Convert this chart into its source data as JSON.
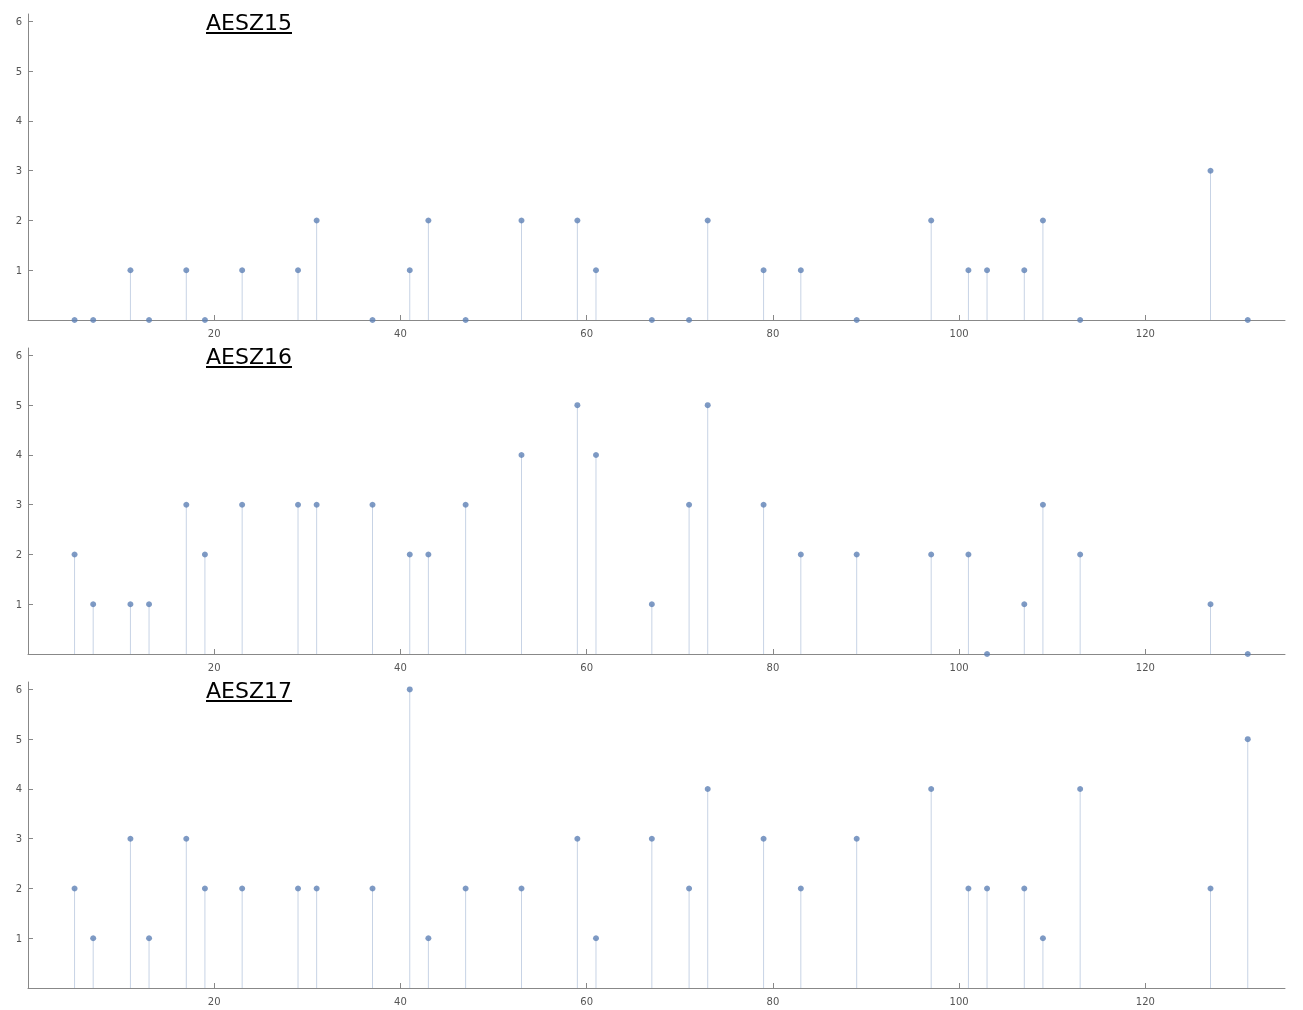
{
  "chart_data": [
    {
      "type": "lollipop",
      "title": "AESZ15",
      "x": [
        5,
        7,
        11,
        13,
        17,
        19,
        23,
        29,
        31,
        37,
        41,
        43,
        47,
        53,
        59,
        61,
        67,
        71,
        73,
        79,
        83,
        89,
        97,
        101,
        103,
        107,
        109,
        113,
        127,
        131
      ],
      "values": [
        0,
        0,
        1,
        0,
        1,
        0,
        1,
        1,
        2,
        0,
        1,
        2,
        0,
        2,
        2,
        1,
        0,
        0,
        2,
        1,
        1,
        0,
        2,
        1,
        1,
        1,
        2,
        0,
        3,
        0
      ],
      "color": "#5e81b5",
      "marker": "circle",
      "xlim": [
        0,
        135
      ],
      "xticks": [
        20,
        40,
        60,
        80,
        100,
        120
      ],
      "ylim": [
        0,
        6.15
      ],
      "yticks": [
        1,
        2,
        3,
        4,
        5,
        6
      ]
    },
    {
      "type": "lollipop",
      "title": "AESZ16",
      "x": [
        5,
        7,
        11,
        13,
        17,
        19,
        23,
        29,
        31,
        37,
        41,
        43,
        47,
        53,
        59,
        61,
        67,
        71,
        73,
        79,
        83,
        89,
        97,
        101,
        103,
        107,
        109,
        113,
        127,
        131
      ],
      "values": [
        2,
        1,
        1,
        1,
        3,
        2,
        3,
        3,
        3,
        3,
        2,
        2,
        3,
        4,
        5,
        4,
        1,
        3,
        5,
        3,
        2,
        2,
        2,
        2,
        0,
        1,
        3,
        2,
        1,
        0
      ],
      "color": "#5e81b5",
      "marker": "circle",
      "xlim": [
        0,
        135
      ],
      "xticks": [
        20,
        40,
        60,
        80,
        100,
        120
      ],
      "ylim": [
        0,
        6.15
      ],
      "yticks": [
        1,
        2,
        3,
        4,
        5,
        6
      ]
    },
    {
      "type": "lollipop",
      "title": "AESZ17",
      "x": [
        5,
        7,
        11,
        13,
        17,
        19,
        23,
        29,
        31,
        37,
        41,
        43,
        47,
        53,
        59,
        61,
        67,
        71,
        73,
        79,
        83,
        89,
        97,
        101,
        103,
        107,
        109,
        113,
        127,
        131
      ],
      "values": [
        2,
        1,
        3,
        1,
        3,
        2,
        2,
        2,
        2,
        2,
        6,
        1,
        2,
        2,
        3,
        1,
        3,
        2,
        4,
        3,
        2,
        3,
        4,
        2,
        2,
        2,
        1,
        4,
        2,
        5
      ],
      "color": "#5e81b5",
      "marker": "circle",
      "xlim": [
        0,
        135
      ],
      "xticks": [
        20,
        40,
        60,
        80,
        100,
        120
      ],
      "ylim": [
        0,
        6.15
      ],
      "yticks": [
        1,
        2,
        3,
        4,
        5,
        6
      ]
    }
  ]
}
